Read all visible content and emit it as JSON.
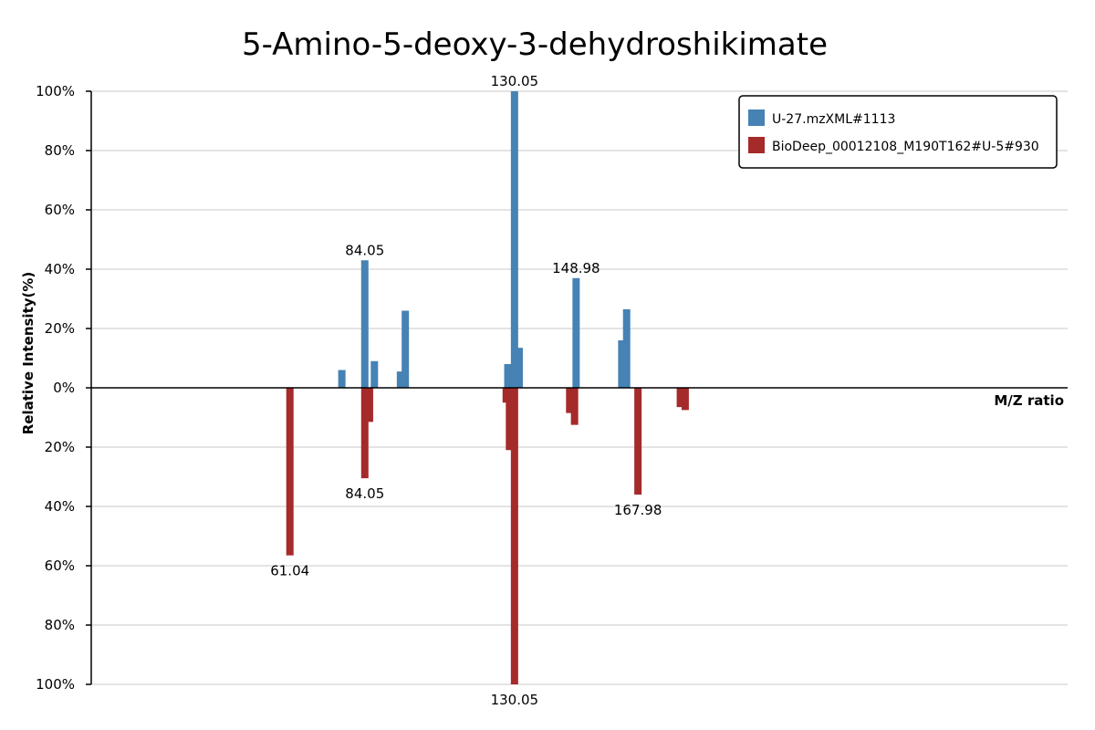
{
  "chart_data": {
    "type": "bar",
    "title": "5-Amino-5-deoxy-3-dehydroshikimate",
    "xlabel": "M/Z ratio",
    "ylabel": "Relative Intensity(%)",
    "y_ticks_top": [
      "100%",
      "80%",
      "60%",
      "40%",
      "20%",
      "0%"
    ],
    "y_ticks_bottom": [
      "20%",
      "40%",
      "60%",
      "80%",
      "100%"
    ],
    "ylim": [
      -100,
      100
    ],
    "xlim": [
      0,
      300
    ],
    "grid": true,
    "legend_position": "top-right",
    "colors": {
      "query": "#4682b4",
      "reference": "#a52a2a"
    },
    "series": [
      {
        "name": "U-27.mzXML#1113",
        "direction": "up",
        "peaks": [
          {
            "mz": 77.0,
            "intensity": 6
          },
          {
            "mz": 84.05,
            "intensity": 43,
            "label": "84.05"
          },
          {
            "mz": 87.0,
            "intensity": 9
          },
          {
            "mz": 95.0,
            "intensity": 5.5
          },
          {
            "mz": 96.5,
            "intensity": 26
          },
          {
            "mz": 128.0,
            "intensity": 8
          },
          {
            "mz": 130.05,
            "intensity": 100,
            "label": "130.05"
          },
          {
            "mz": 131.5,
            "intensity": 13.5
          },
          {
            "mz": 148.98,
            "intensity": 37,
            "label": "148.98"
          },
          {
            "mz": 163.0,
            "intensity": 16
          },
          {
            "mz": 164.5,
            "intensity": 26.5
          }
        ]
      },
      {
        "name": "BioDeep_00012108_M190T162#U-5#930",
        "direction": "down",
        "peaks": [
          {
            "mz": 61.04,
            "intensity": 56.5,
            "label": "61.04"
          },
          {
            "mz": 84.05,
            "intensity": 30.5,
            "label": "84.05"
          },
          {
            "mz": 85.5,
            "intensity": 11.5
          },
          {
            "mz": 127.5,
            "intensity": 5
          },
          {
            "mz": 128.5,
            "intensity": 21
          },
          {
            "mz": 130.05,
            "intensity": 100,
            "label": "130.05"
          },
          {
            "mz": 147.0,
            "intensity": 8.5
          },
          {
            "mz": 148.5,
            "intensity": 12.5
          },
          {
            "mz": 167.98,
            "intensity": 36,
            "label": "167.98"
          },
          {
            "mz": 181.0,
            "intensity": 6.5
          },
          {
            "mz": 182.5,
            "intensity": 7.5
          }
        ]
      }
    ]
  }
}
